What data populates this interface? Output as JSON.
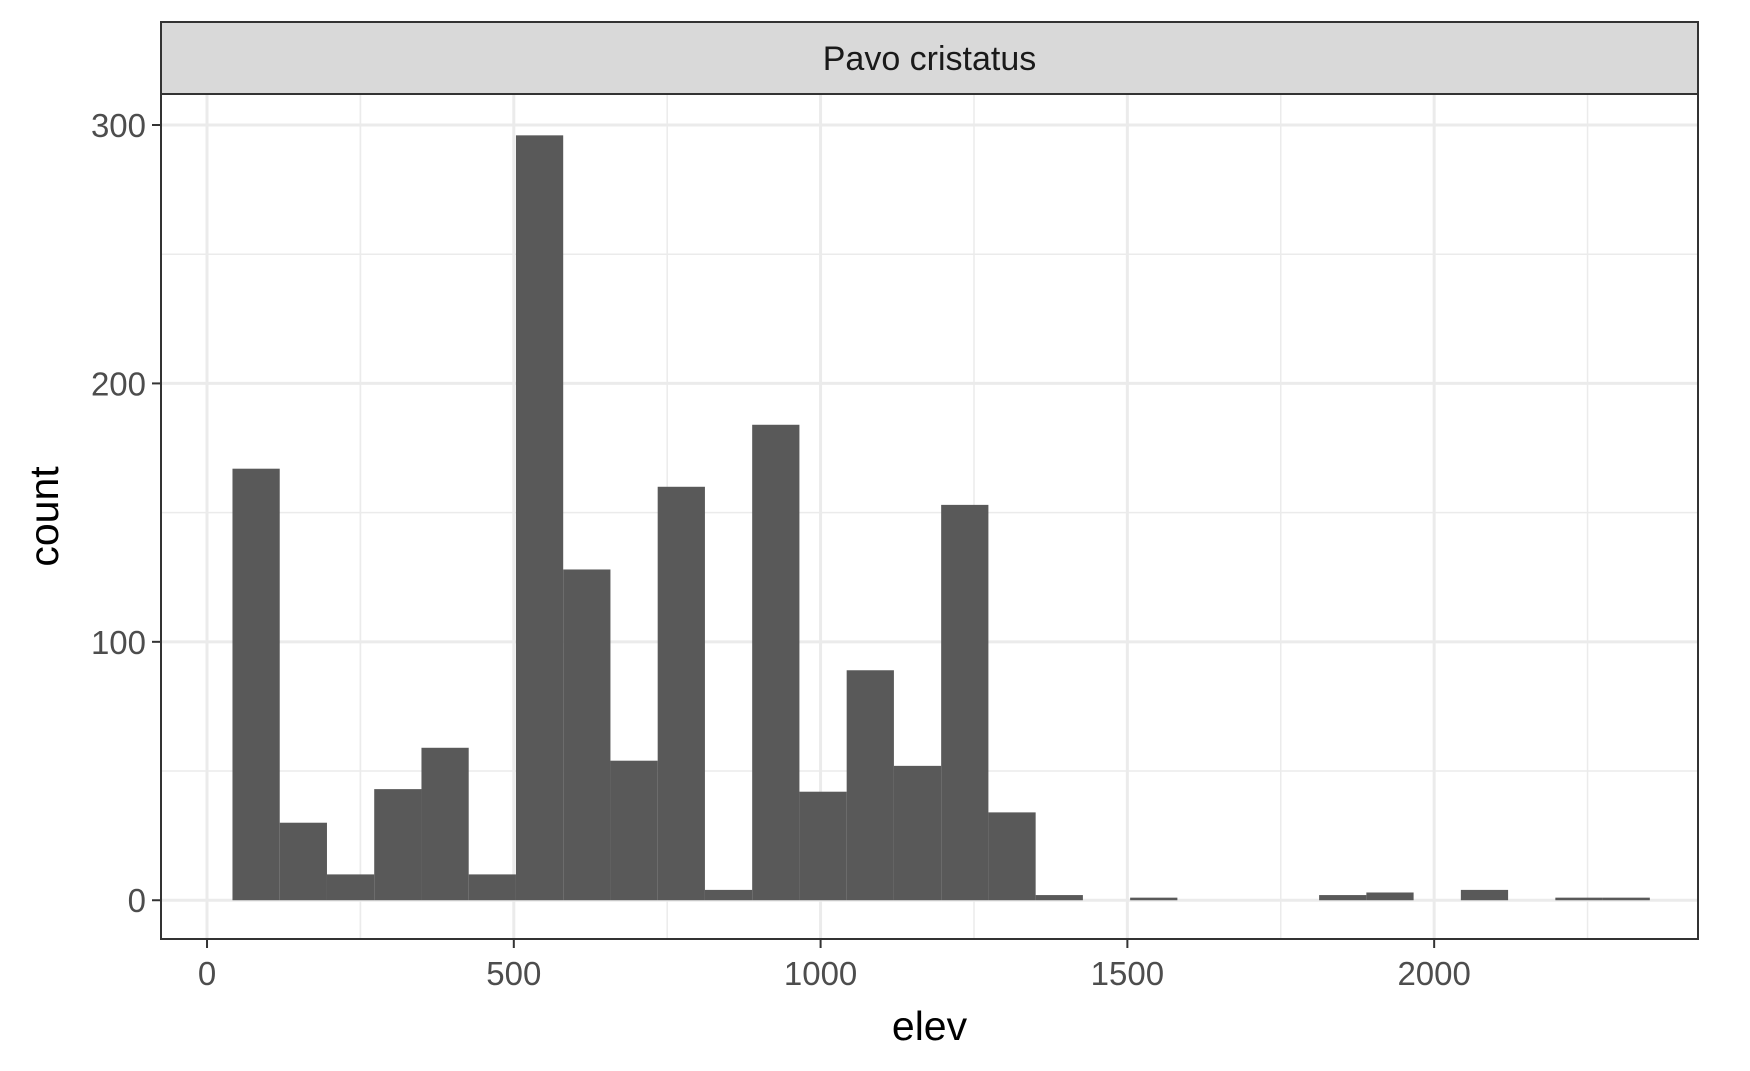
{
  "chart_data": {
    "type": "bar",
    "subtype": "histogram",
    "facet_label": "Pavo cristatus",
    "xlabel": "elev",
    "ylabel": "count",
    "xlim": [
      -75,
      2430
    ],
    "ylim": [
      -15,
      312
    ],
    "x_ticks": [
      0,
      500,
      1000,
      1500,
      2000
    ],
    "y_ticks": [
      0,
      100,
      200,
      300
    ],
    "bin_width": 77,
    "bins": [
      {
        "x": 80,
        "count": 167
      },
      {
        "x": 157,
        "count": 30
      },
      {
        "x": 234,
        "count": 10
      },
      {
        "x": 311,
        "count": 43
      },
      {
        "x": 388,
        "count": 59
      },
      {
        "x": 465,
        "count": 10
      },
      {
        "x": 542,
        "count": 296
      },
      {
        "x": 619,
        "count": 128
      },
      {
        "x": 696,
        "count": 54
      },
      {
        "x": 773,
        "count": 160
      },
      {
        "x": 850,
        "count": 4
      },
      {
        "x": 927,
        "count": 184
      },
      {
        "x": 1004,
        "count": 42
      },
      {
        "x": 1081,
        "count": 89
      },
      {
        "x": 1158,
        "count": 52
      },
      {
        "x": 1235,
        "count": 153
      },
      {
        "x": 1312,
        "count": 34
      },
      {
        "x": 1389,
        "count": 2
      },
      {
        "x": 1466,
        "count": 0
      },
      {
        "x": 1543,
        "count": 1
      },
      {
        "x": 1620,
        "count": 0
      },
      {
        "x": 1697,
        "count": 0
      },
      {
        "x": 1774,
        "count": 0
      },
      {
        "x": 1851,
        "count": 2
      },
      {
        "x": 1928,
        "count": 3
      },
      {
        "x": 2005,
        "count": 0
      },
      {
        "x": 2082,
        "count": 4
      },
      {
        "x": 2159,
        "count": 0
      },
      {
        "x": 2236,
        "count": 1
      },
      {
        "x": 2313,
        "count": 1
      }
    ],
    "grid": true,
    "colors": {
      "bar": "#595959",
      "strip_fill": "#d9d9d9",
      "panel_border": "#333333",
      "grid": "#ebebeb"
    }
  }
}
